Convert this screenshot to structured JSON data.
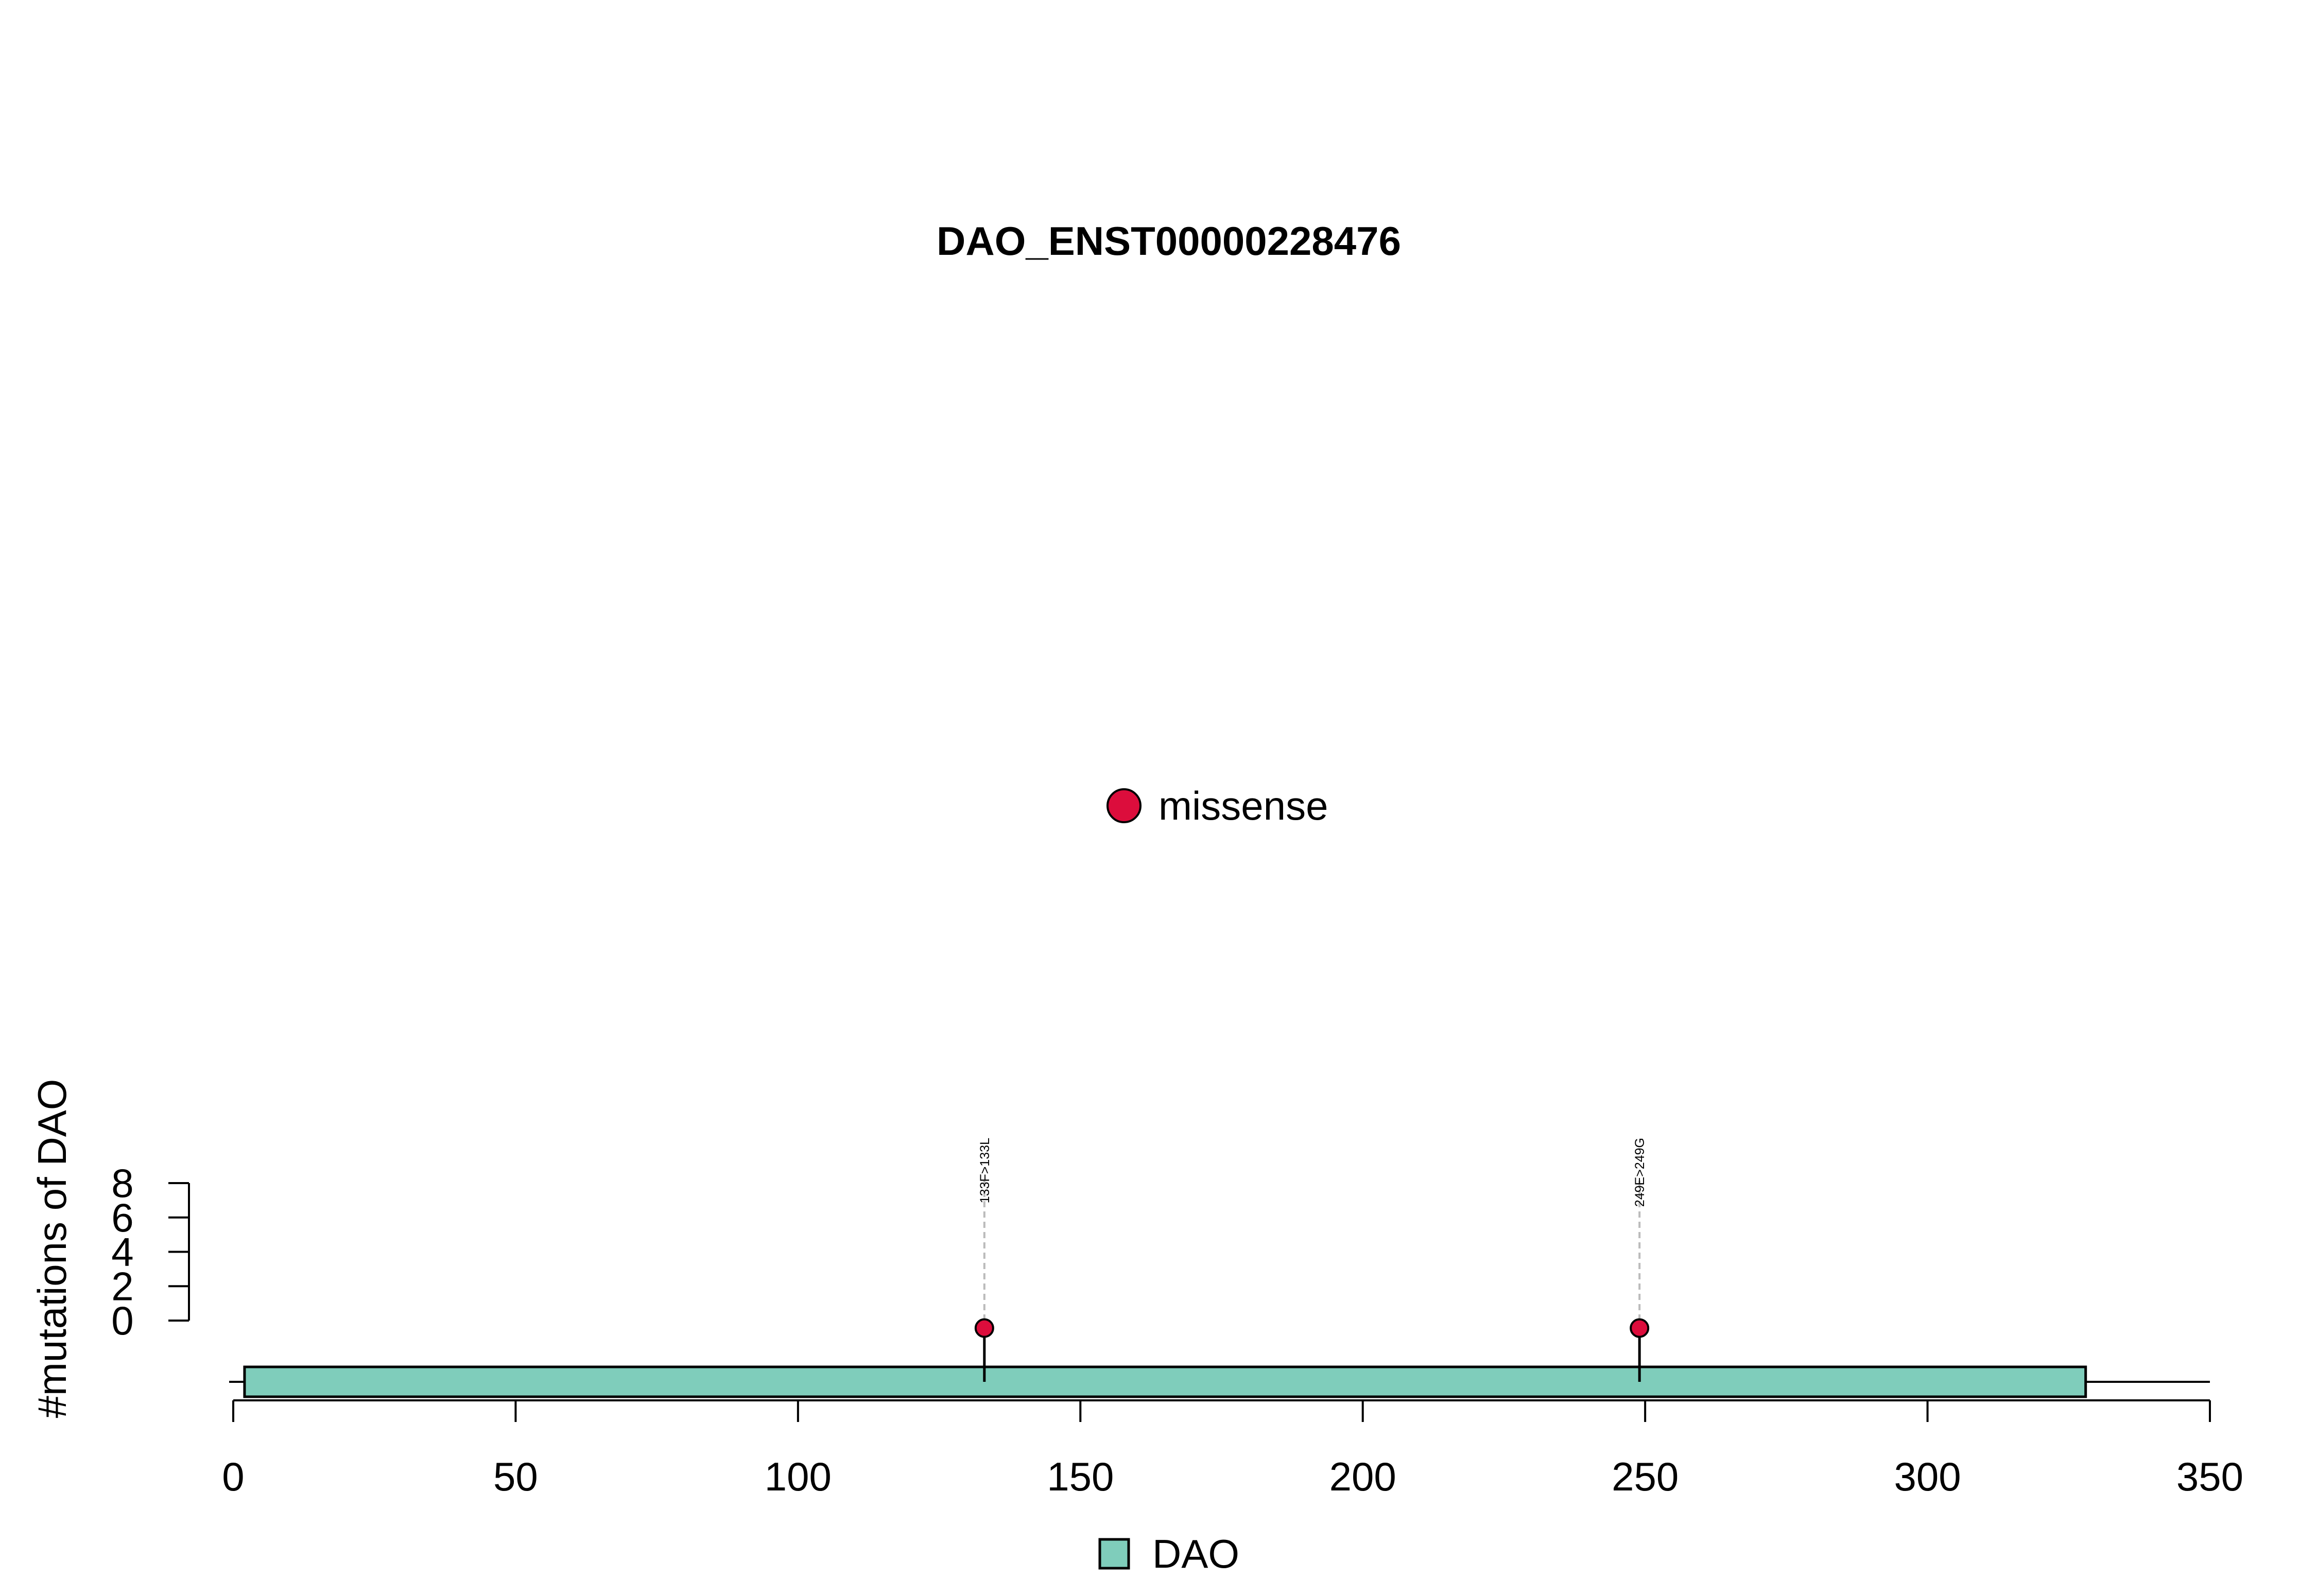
{
  "chart_data": {
    "type": "lollipop",
    "title": "DAO_ENST00000228476",
    "ylabel": "#mutations of DAO",
    "xlim": [
      0,
      350
    ],
    "x_ticks": [
      0,
      50,
      100,
      150,
      200,
      250,
      300,
      350
    ],
    "ylim": [
      0,
      8
    ],
    "y_ticks": [
      0,
      2,
      4,
      6,
      8
    ],
    "protein_length": 350,
    "domains": [
      {
        "name": "DAO",
        "start": 2,
        "end": 328,
        "color": "#7fcdbb"
      }
    ],
    "mutations": [
      {
        "position": 133,
        "count": 1,
        "label": "133F>133L",
        "type": "missense"
      },
      {
        "position": 249,
        "count": 1,
        "label": "249E>249G",
        "type": "missense"
      }
    ],
    "legend_top": [
      {
        "label": "missense",
        "color": "#dc0d3c"
      }
    ],
    "legend_bottom": [
      {
        "label": "DAO",
        "color": "#7fcdbb"
      }
    ],
    "grid": false
  }
}
